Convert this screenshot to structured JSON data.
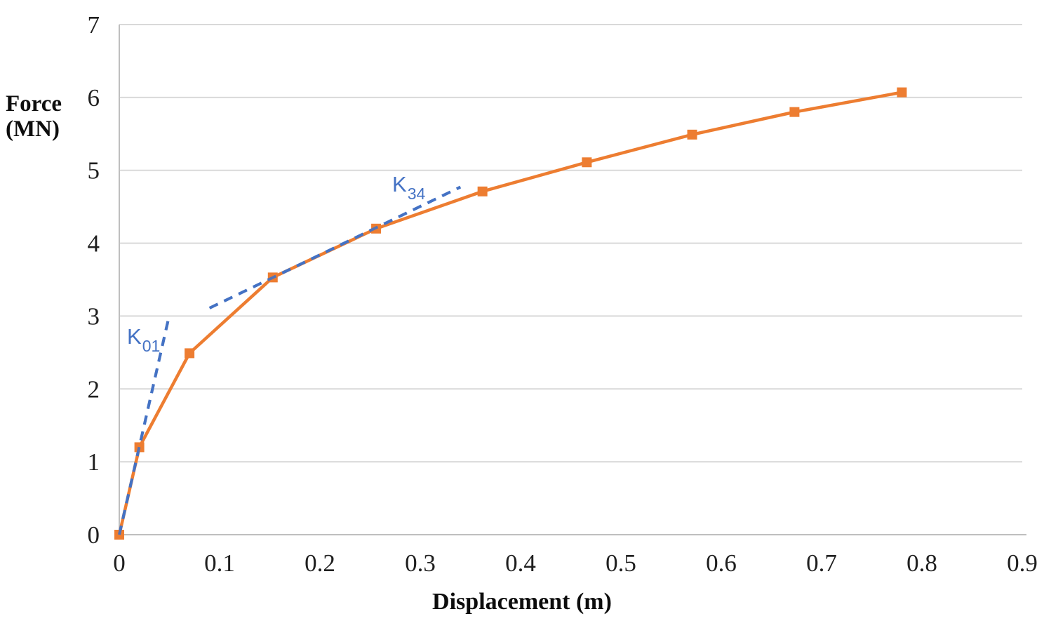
{
  "chart_data": {
    "type": "line",
    "title": "",
    "xlabel": "Displacement (m)",
    "ylabel": "Force (MN)",
    "ylabel_line1": "Force",
    "ylabel_line2": "(MN)",
    "xlim": [
      0,
      0.9
    ],
    "ylim": [
      0,
      7
    ],
    "x_ticks": [
      0,
      0.1,
      0.2,
      0.3,
      0.4,
      0.5,
      0.6,
      0.7,
      0.8,
      0.9
    ],
    "x_tick_labels": [
      "0",
      "0.1",
      "0.2",
      "0.3",
      "0.4",
      "0.5",
      "0.6",
      "0.7",
      "0.8",
      "0.9"
    ],
    "y_ticks": [
      0,
      1,
      2,
      3,
      4,
      5,
      6,
      7
    ],
    "y_tick_labels": [
      "0",
      "1",
      "2",
      "3",
      "4",
      "5",
      "6",
      "7"
    ],
    "grid": "horizontal-only",
    "legend": "none",
    "series": [
      {
        "name": "force-displacement-curve",
        "kind": "solid-line-with-square-markers",
        "color": "#ED7D31",
        "x": [
          0,
          0.02,
          0.07,
          0.153,
          0.256,
          0.362,
          0.466,
          0.571,
          0.673,
          0.78
        ],
        "y": [
          0,
          1.2,
          2.49,
          3.53,
          4.2,
          4.71,
          5.11,
          5.49,
          5.8,
          6.07
        ]
      },
      {
        "name": "K01-secant-stiffness-line",
        "kind": "dashed-line",
        "color": "#4472C4",
        "x": [
          0,
          0.05
        ],
        "y": [
          0,
          3.02
        ],
        "label": {
          "base": "K",
          "sub": "01"
        }
      },
      {
        "name": "K34-secant-stiffness-line",
        "kind": "dashed-line",
        "color": "#4472C4",
        "x": [
          0.09,
          0.34
        ],
        "y": [
          3.11,
          4.77
        ],
        "label": {
          "base": "K",
          "sub": "34"
        }
      }
    ]
  },
  "colors": {
    "curve": "#ED7D31",
    "stiffness_lines": "#4472C4",
    "gridline": "#D9D9D9",
    "axis": "#BFBFBF",
    "tick_text": "#1F1F1F"
  }
}
